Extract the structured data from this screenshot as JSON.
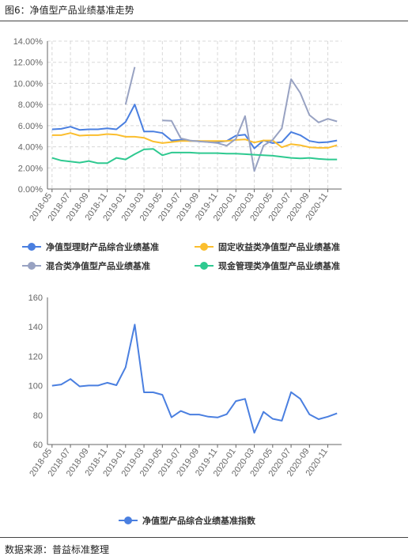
{
  "figure": {
    "title": "图6：净值型产品业绩基准走势",
    "source": "数据来源：普益标准整理"
  },
  "colors": {
    "blue": "#4a7fe0",
    "yellow": "#fbbe2e",
    "gray": "#98a2c2",
    "green": "#2ec990",
    "grid": "#d8d8d8",
    "axis": "#666666"
  },
  "chart_data": [
    {
      "type": "line",
      "title": "",
      "xlabel": "",
      "ylabel": "",
      "ylim": [
        0,
        14
      ],
      "y_unit": "%",
      "y_ticks": [
        "0.00%",
        "2.00%",
        "4.00%",
        "6.00%",
        "8.00%",
        "10.00%",
        "12.00%",
        "14.00%"
      ],
      "x_tick_labels": [
        "2018-05",
        "2018-07",
        "2018-09",
        "2018-11",
        "2019-01",
        "2019-03",
        "2019-05",
        "2019-07",
        "2019-09",
        "2019-11",
        "2020-01",
        "2020-03",
        "2020-05",
        "2020-07",
        "2020-09",
        "2020-11"
      ],
      "grid": true,
      "legend_position": "bottom",
      "x": [
        "2018-05",
        "2018-06",
        "2018-07",
        "2018-08",
        "2018-09",
        "2018-10",
        "2018-11",
        "2018-12",
        "2019-01",
        "2019-02",
        "2019-03",
        "2019-04",
        "2019-05",
        "2019-06",
        "2019-07",
        "2019-08",
        "2019-09",
        "2019-10",
        "2019-11",
        "2019-12",
        "2020-01",
        "2020-02",
        "2020-03",
        "2020-04",
        "2020-05",
        "2020-06",
        "2020-07",
        "2020-08",
        "2020-09",
        "2020-10",
        "2020-11",
        "2020-12"
      ],
      "series": [
        {
          "name": "净值型理财产品综合业绩基准",
          "color": "#4a7fe0",
          "values": [
            5.65,
            5.7,
            5.9,
            5.6,
            5.65,
            5.65,
            5.75,
            5.65,
            6.35,
            8.0,
            5.45,
            5.45,
            5.3,
            4.6,
            4.65,
            4.55,
            4.55,
            4.45,
            4.45,
            4.55,
            5.05,
            5.15,
            3.85,
            4.6,
            4.35,
            4.45,
            5.4,
            5.1,
            4.55,
            4.4,
            4.45,
            4.6
          ]
        },
        {
          "name": "固定收益类净值型产品业绩基准",
          "color": "#fbbe2e",
          "values": [
            5.1,
            5.1,
            5.3,
            5.05,
            5.1,
            5.1,
            5.2,
            5.15,
            4.95,
            4.95,
            4.85,
            4.5,
            4.35,
            4.45,
            4.55,
            4.55,
            4.55,
            4.55,
            4.55,
            4.55,
            4.65,
            4.7,
            4.4,
            4.6,
            4.6,
            3.95,
            4.25,
            4.15,
            3.95,
            3.9,
            3.9,
            4.15
          ]
        },
        {
          "name": "混合类净值型产品业绩基准",
          "color": "#98a2c2",
          "values": [
            null,
            null,
            null,
            null,
            null,
            null,
            null,
            null,
            8.0,
            11.55,
            null,
            null,
            6.5,
            6.45,
            4.8,
            4.6,
            4.5,
            4.45,
            4.35,
            4.1,
            4.75,
            6.9,
            1.7,
            4.1,
            4.65,
            5.75,
            10.4,
            9.1,
            7.0,
            6.3,
            6.65,
            6.4
          ]
        },
        {
          "name": "现金管理类净值型产品业绩基准",
          "color": "#2ec990",
          "values": [
            2.95,
            2.7,
            2.6,
            2.5,
            2.65,
            2.45,
            2.45,
            2.95,
            2.8,
            3.3,
            3.75,
            3.8,
            3.2,
            3.45,
            3.45,
            3.45,
            3.4,
            3.4,
            3.4,
            3.35,
            3.35,
            3.3,
            3.25,
            3.2,
            3.15,
            3.05,
            2.95,
            2.9,
            2.95,
            2.85,
            2.8,
            2.8
          ]
        }
      ]
    },
    {
      "type": "line",
      "title": "",
      "xlabel": "",
      "ylabel": "",
      "ylim": [
        60,
        160
      ],
      "y_ticks": [
        "60",
        "80",
        "100",
        "120",
        "140",
        "160"
      ],
      "x_tick_labels": [
        "2018-05",
        "2018-07",
        "2018-09",
        "2018-11",
        "2019-01",
        "2019-03",
        "2019-05",
        "2019-07",
        "2019-09",
        "2019-11",
        "2020-01",
        "2020-03",
        "2020-05",
        "2020-07",
        "2020-09",
        "2020-11"
      ],
      "grid": false,
      "legend_position": "bottom",
      "x": [
        "2018-05",
        "2018-06",
        "2018-07",
        "2018-08",
        "2018-09",
        "2018-10",
        "2018-11",
        "2018-12",
        "2019-01",
        "2019-02",
        "2019-03",
        "2019-04",
        "2019-05",
        "2019-06",
        "2019-07",
        "2019-08",
        "2019-09",
        "2019-10",
        "2019-11",
        "2019-12",
        "2020-01",
        "2020-02",
        "2020-03",
        "2020-04",
        "2020-05",
        "2020-06",
        "2020-07",
        "2020-08",
        "2020-09",
        "2020-10",
        "2020-11",
        "2020-12"
      ],
      "series": [
        {
          "name": "净值型产品综合业绩基准指数",
          "color": "#4a7fe0",
          "values": [
            100,
            100.8,
            104.5,
            99.5,
            100.1,
            100.1,
            102,
            100.3,
            112.5,
            141.5,
            95.5,
            95.5,
            93.8,
            78.5,
            82.8,
            80.4,
            80.4,
            78.9,
            78.4,
            80.6,
            89.5,
            91,
            68,
            82.2,
            77.5,
            76.2,
            95.6,
            91.1,
            80.5,
            77.2,
            78.9,
            81.2
          ]
        }
      ]
    }
  ]
}
